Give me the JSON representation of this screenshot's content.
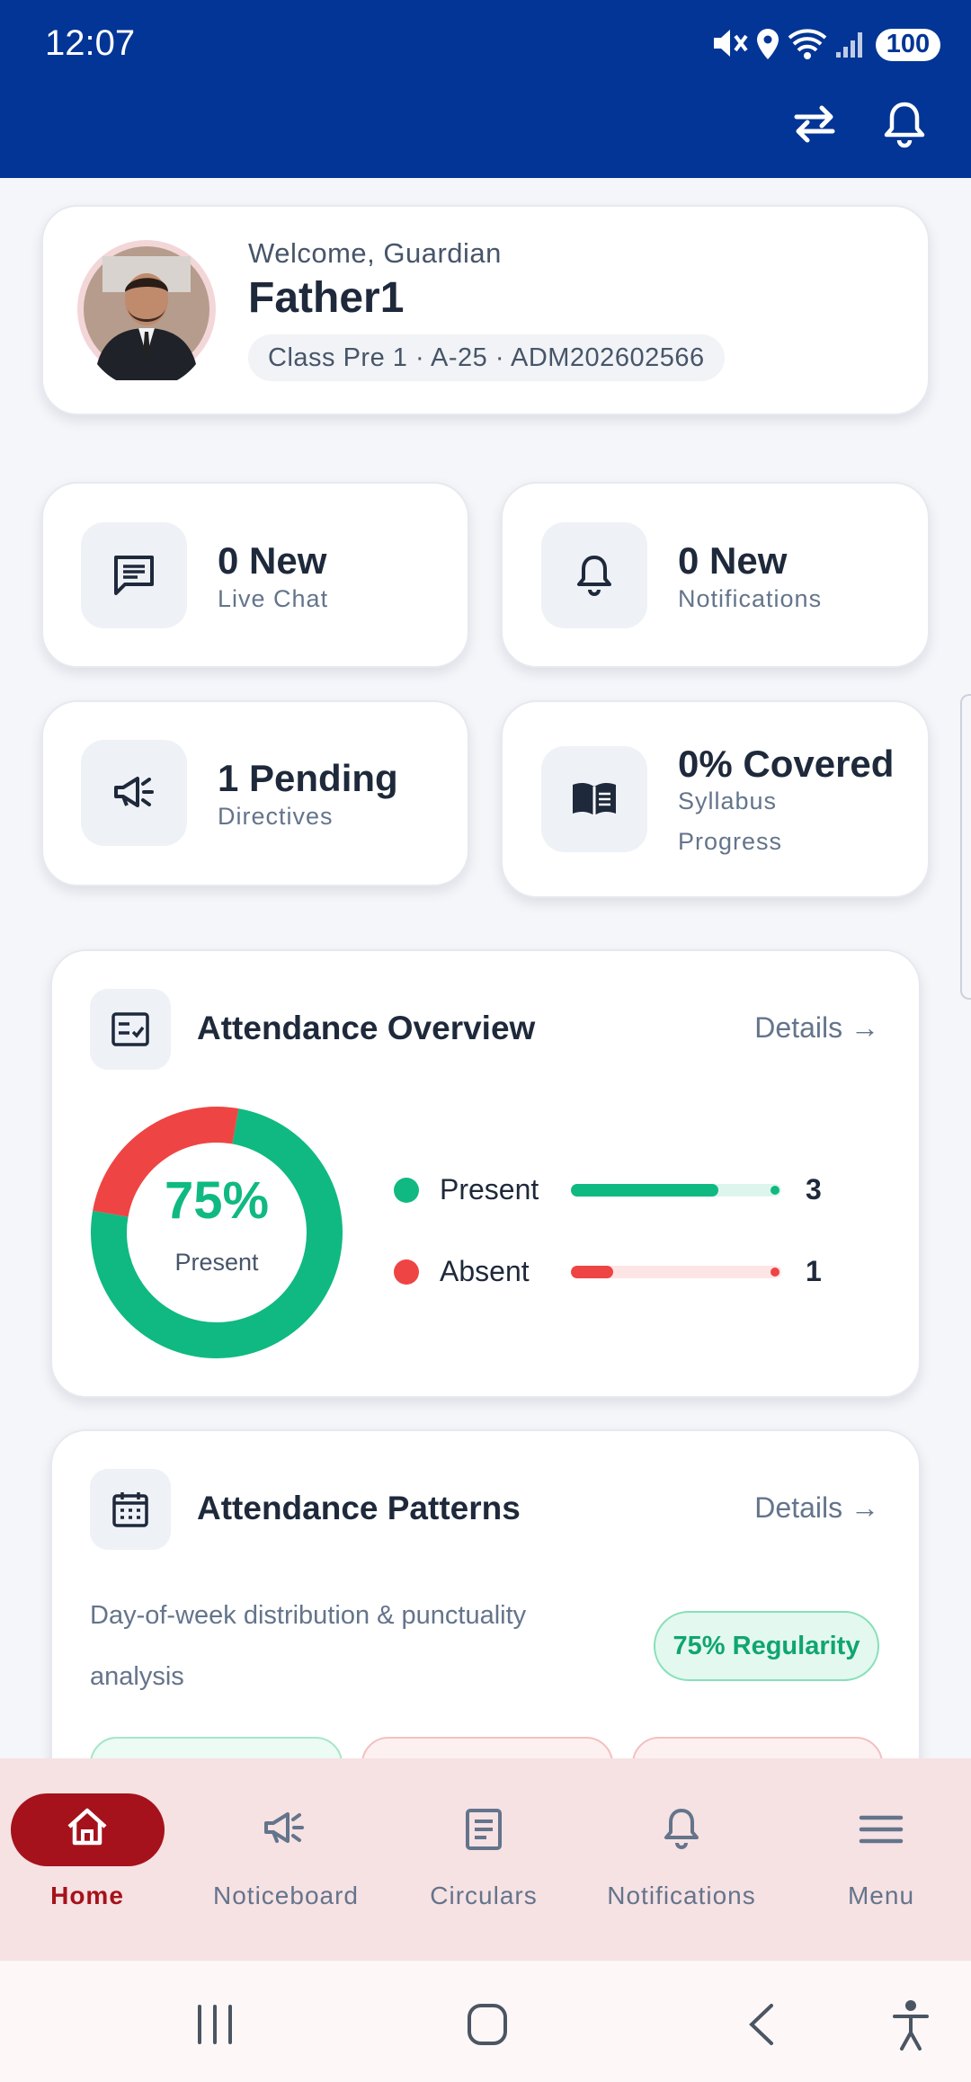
{
  "status_bar": {
    "time": "12:07",
    "battery": "100"
  },
  "profile": {
    "greeting": "Welcome, Guardian",
    "name": "Father1",
    "details": "Class Pre 1 · A-25 · ADM202602566"
  },
  "stats": [
    {
      "value": "0 New",
      "label": "Live Chat"
    },
    {
      "value": "0 New",
      "label": "Notifications"
    },
    {
      "value": "1 Pending",
      "label": "Directives"
    },
    {
      "value": "0% Covered",
      "label": "Syllabus Progress"
    }
  ],
  "attendance_overview": {
    "title": "Attendance Overview",
    "link": "Details →",
    "percent": "75%",
    "percent_label": "Present",
    "series": [
      {
        "name": "Present",
        "value": 3,
        "color": "#10b981"
      },
      {
        "name": "Absent",
        "value": 1,
        "color": "#ef4444"
      }
    ]
  },
  "attendance_patterns": {
    "title": "Attendance Patterns",
    "link": "Details →",
    "description": "Day-of-week distribution & punctuality analysis",
    "badge": "75% Regularity"
  },
  "bottom_nav": [
    {
      "label": "Home",
      "active": true
    },
    {
      "label": "Noticeboard",
      "active": false
    },
    {
      "label": "Circulars",
      "active": false
    },
    {
      "label": "Notifications",
      "active": false
    },
    {
      "label": "Menu",
      "active": false
    }
  ]
}
